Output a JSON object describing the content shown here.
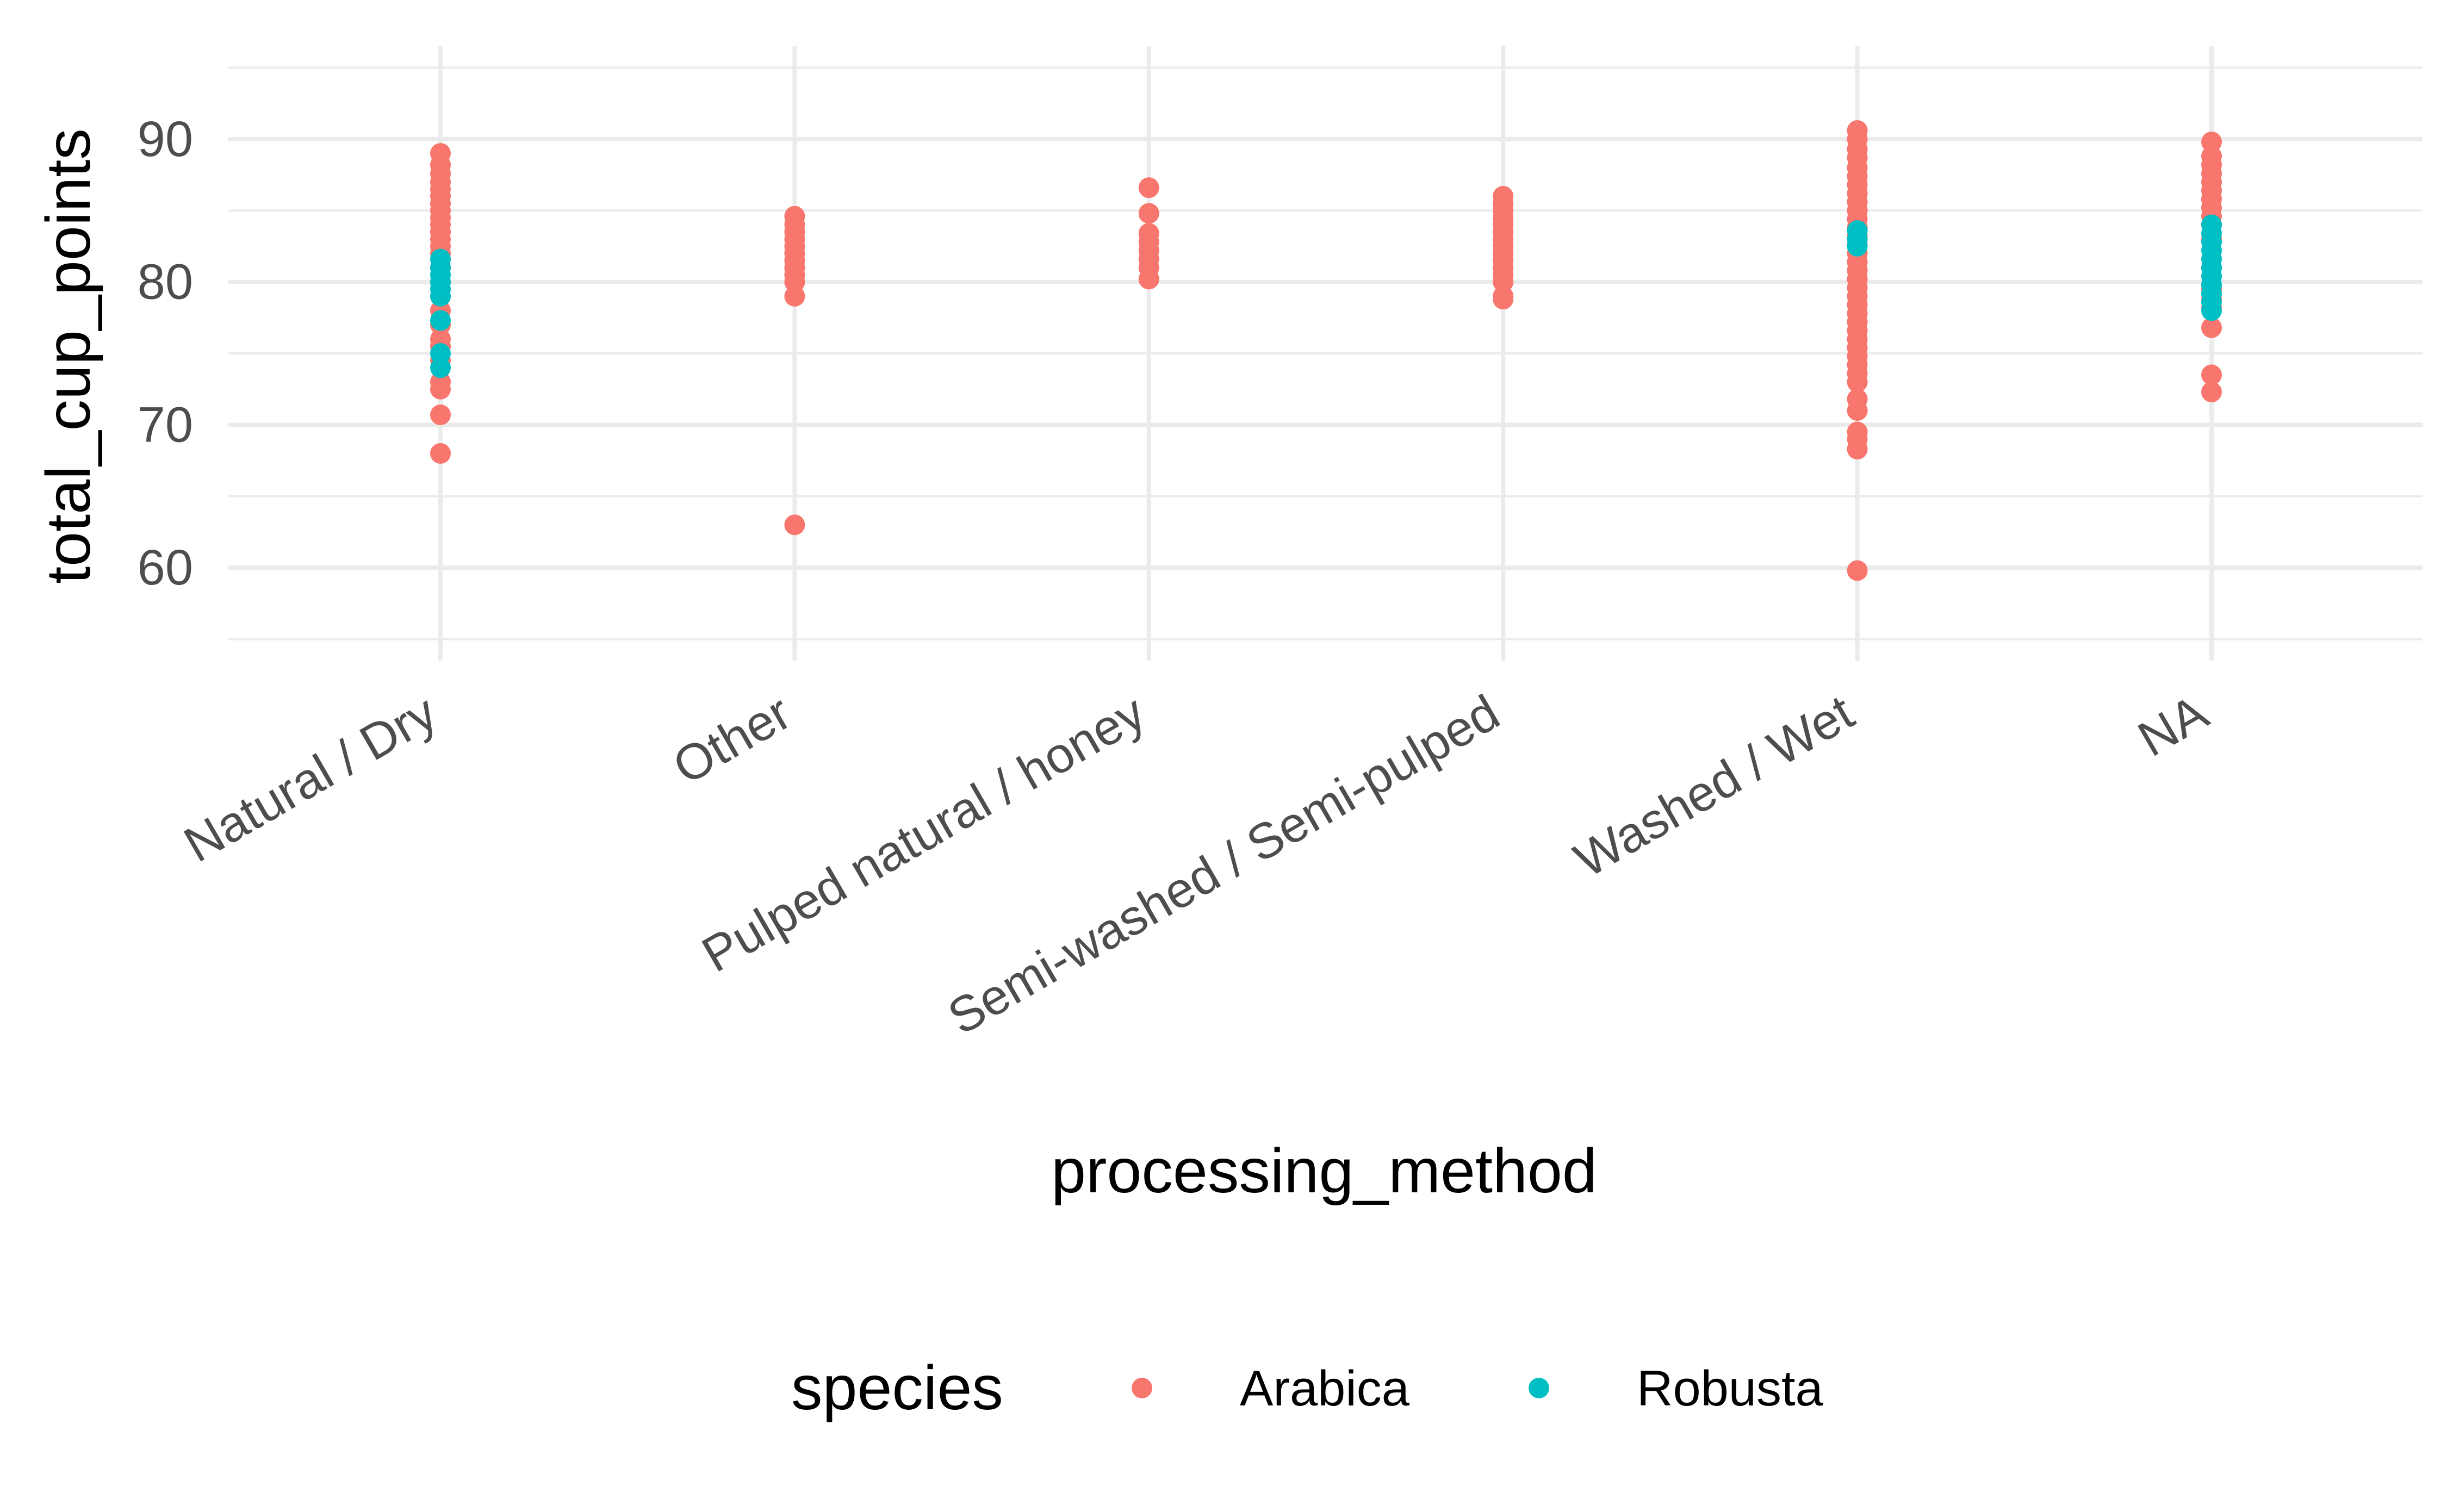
{
  "chart_data": {
    "type": "scatter",
    "title": "",
    "xlabel": "processing_method",
    "ylabel": "total_cup_points",
    "categories": [
      "Natural / Dry",
      "Other",
      "Pulped natural / honey",
      "Semi-washed / Semi-pulped",
      "Washed / Wet",
      "NA"
    ],
    "ylim": [
      53.5,
      96.5
    ],
    "yticks": [
      60,
      70,
      80,
      90
    ],
    "ytick_labels": [
      "60",
      "70",
      "80",
      "90"
    ],
    "grid": true,
    "legend": {
      "title": "species",
      "position": "bottom"
    },
    "series": [
      {
        "name": "Arabica",
        "color": "#F8766D",
        "points": [
          [
            "Natural / Dry",
            89.0
          ],
          [
            "Natural / Dry",
            88.2
          ],
          [
            "Natural / Dry",
            87.6
          ],
          [
            "Natural / Dry",
            87.0
          ],
          [
            "Natural / Dry",
            86.5
          ],
          [
            "Natural / Dry",
            86.0
          ],
          [
            "Natural / Dry",
            85.5
          ],
          [
            "Natural / Dry",
            85.0
          ],
          [
            "Natural / Dry",
            84.5
          ],
          [
            "Natural / Dry",
            84.0
          ],
          [
            "Natural / Dry",
            83.5
          ],
          [
            "Natural / Dry",
            83.0
          ],
          [
            "Natural / Dry",
            82.5
          ],
          [
            "Natural / Dry",
            82.0
          ],
          [
            "Natural / Dry",
            81.0
          ],
          [
            "Natural / Dry",
            80.0
          ],
          [
            "Natural / Dry",
            79.0
          ],
          [
            "Natural / Dry",
            78.0
          ],
          [
            "Natural / Dry",
            77.0
          ],
          [
            "Natural / Dry",
            76.0
          ],
          [
            "Natural / Dry",
            75.5
          ],
          [
            "Natural / Dry",
            74.5
          ],
          [
            "Natural / Dry",
            73.0
          ],
          [
            "Natural / Dry",
            72.5
          ],
          [
            "Natural / Dry",
            70.7
          ],
          [
            "Natural / Dry",
            68.0
          ],
          [
            "Other",
            84.6
          ],
          [
            "Other",
            84.0
          ],
          [
            "Other",
            83.5
          ],
          [
            "Other",
            83.0
          ],
          [
            "Other",
            82.5
          ],
          [
            "Other",
            82.0
          ],
          [
            "Other",
            81.5
          ],
          [
            "Other",
            81.0
          ],
          [
            "Other",
            80.5
          ],
          [
            "Other",
            80.0
          ],
          [
            "Other",
            79.0
          ],
          [
            "Other",
            63.0
          ],
          [
            "Pulped natural / honey",
            86.6
          ],
          [
            "Pulped natural / honey",
            84.8
          ],
          [
            "Pulped natural / honey",
            83.4
          ],
          [
            "Pulped natural / honey",
            82.8
          ],
          [
            "Pulped natural / honey",
            82.2
          ],
          [
            "Pulped natural / honey",
            81.6
          ],
          [
            "Pulped natural / honey",
            81.0
          ],
          [
            "Pulped natural / honey",
            80.2
          ],
          [
            "Semi-washed / Semi-pulped",
            86.0
          ],
          [
            "Semi-washed / Semi-pulped",
            85.5
          ],
          [
            "Semi-washed / Semi-pulped",
            85.0
          ],
          [
            "Semi-washed / Semi-pulped",
            84.5
          ],
          [
            "Semi-washed / Semi-pulped",
            84.0
          ],
          [
            "Semi-washed / Semi-pulped",
            83.5
          ],
          [
            "Semi-washed / Semi-pulped",
            83.0
          ],
          [
            "Semi-washed / Semi-pulped",
            82.5
          ],
          [
            "Semi-washed / Semi-pulped",
            82.0
          ],
          [
            "Semi-washed / Semi-pulped",
            81.5
          ],
          [
            "Semi-washed / Semi-pulped",
            81.0
          ],
          [
            "Semi-washed / Semi-pulped",
            80.5
          ],
          [
            "Semi-washed / Semi-pulped",
            80.0
          ],
          [
            "Semi-washed / Semi-pulped",
            79.0
          ],
          [
            "Semi-washed / Semi-pulped",
            78.8
          ],
          [
            "Washed / Wet",
            90.6
          ],
          [
            "Washed / Wet",
            90.0
          ],
          [
            "Washed / Wet",
            89.3
          ],
          [
            "Washed / Wet",
            88.7
          ],
          [
            "Washed / Wet",
            88.0
          ],
          [
            "Washed / Wet",
            87.4
          ],
          [
            "Washed / Wet",
            86.8
          ],
          [
            "Washed / Wet",
            86.2
          ],
          [
            "Washed / Wet",
            85.6
          ],
          [
            "Washed / Wet",
            85.0
          ],
          [
            "Washed / Wet",
            84.4
          ],
          [
            "Washed / Wet",
            83.8
          ],
          [
            "Washed / Wet",
            83.2
          ],
          [
            "Washed / Wet",
            82.6
          ],
          [
            "Washed / Wet",
            82.0
          ],
          [
            "Washed / Wet",
            81.4
          ],
          [
            "Washed / Wet",
            80.8
          ],
          [
            "Washed / Wet",
            80.2
          ],
          [
            "Washed / Wet",
            79.6
          ],
          [
            "Washed / Wet",
            79.0
          ],
          [
            "Washed / Wet",
            78.4
          ],
          [
            "Washed / Wet",
            77.8
          ],
          [
            "Washed / Wet",
            77.2
          ],
          [
            "Washed / Wet",
            76.6
          ],
          [
            "Washed / Wet",
            76.0
          ],
          [
            "Washed / Wet",
            75.4
          ],
          [
            "Washed / Wet",
            74.8
          ],
          [
            "Washed / Wet",
            74.2
          ],
          [
            "Washed / Wet",
            73.6
          ],
          [
            "Washed / Wet",
            73.0
          ],
          [
            "Washed / Wet",
            71.8
          ],
          [
            "Washed / Wet",
            71.0
          ],
          [
            "Washed / Wet",
            69.5
          ],
          [
            "Washed / Wet",
            69.0
          ],
          [
            "Washed / Wet",
            68.3
          ],
          [
            "Washed / Wet",
            59.8
          ],
          [
            "NA",
            89.8
          ],
          [
            "NA",
            88.8
          ],
          [
            "NA",
            88.2
          ],
          [
            "NA",
            87.6
          ],
          [
            "NA",
            87.0
          ],
          [
            "NA",
            86.4
          ],
          [
            "NA",
            85.8
          ],
          [
            "NA",
            85.2
          ],
          [
            "NA",
            84.6
          ],
          [
            "NA",
            84.0
          ],
          [
            "NA",
            83.0
          ],
          [
            "NA",
            81.0
          ],
          [
            "NA",
            79.5
          ],
          [
            "NA",
            78.8
          ],
          [
            "NA",
            78.2
          ],
          [
            "NA",
            76.8
          ],
          [
            "NA",
            73.5
          ],
          [
            "NA",
            72.3
          ]
        ]
      },
      {
        "name": "Robusta",
        "color": "#00BFC4",
        "points": [
          [
            "Natural / Dry",
            81.6
          ],
          [
            "Natural / Dry",
            81.0
          ],
          [
            "Natural / Dry",
            80.5
          ],
          [
            "Natural / Dry",
            80.0
          ],
          [
            "Natural / Dry",
            79.5
          ],
          [
            "Natural / Dry",
            79.0
          ],
          [
            "Natural / Dry",
            77.3
          ],
          [
            "Natural / Dry",
            75.0
          ],
          [
            "Natural / Dry",
            74.0
          ],
          [
            "Washed / Wet",
            83.6
          ],
          [
            "Washed / Wet",
            83.0
          ],
          [
            "Washed / Wet",
            82.5
          ],
          [
            "NA",
            84.0
          ],
          [
            "NA",
            83.4
          ],
          [
            "NA",
            82.8
          ],
          [
            "NA",
            82.2
          ],
          [
            "NA",
            81.6
          ],
          [
            "NA",
            81.0
          ],
          [
            "NA",
            80.4
          ],
          [
            "NA",
            79.8
          ],
          [
            "NA",
            79.2
          ],
          [
            "NA",
            78.6
          ],
          [
            "NA",
            78.0
          ]
        ]
      }
    ]
  }
}
